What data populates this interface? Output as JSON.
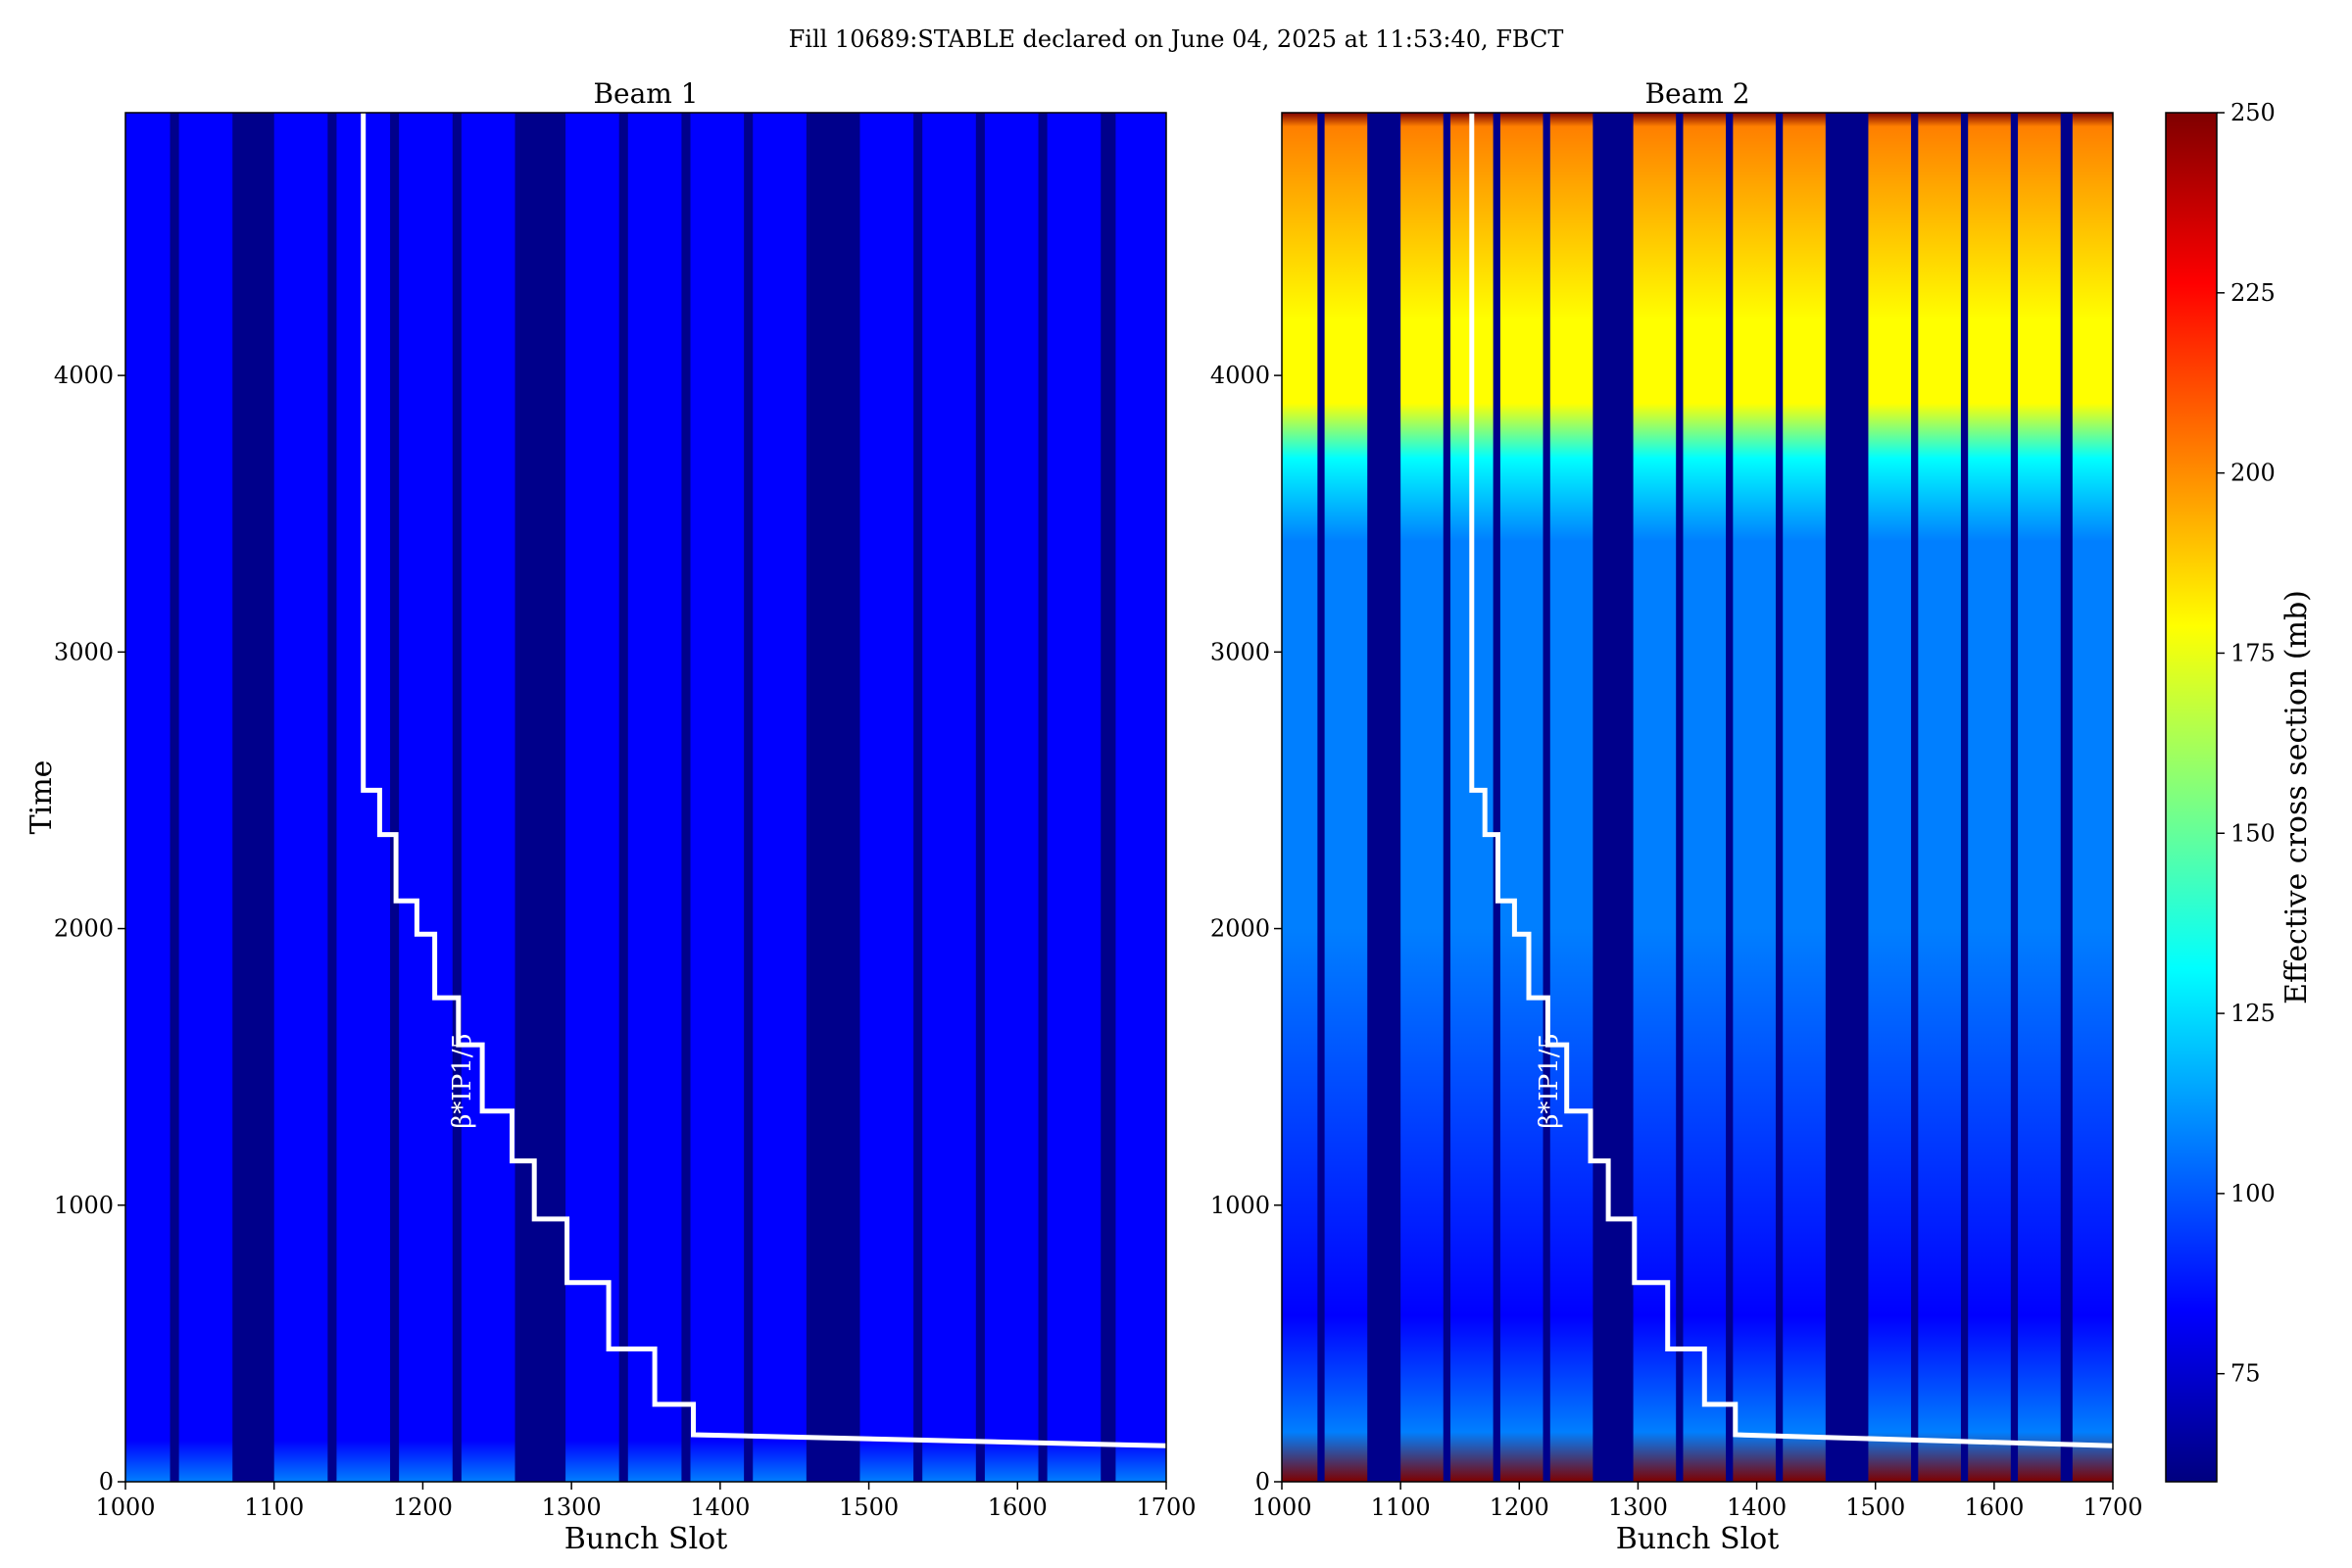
{
  "figure": {
    "title": "Fill 10689:STABLE declared on June 04, 2025 at 11:53:40, FBCT"
  },
  "colors": {
    "background": "#ffffff",
    "empty_slot": "#00008b",
    "overlay_line": "#ffffff",
    "colormap": [
      "#00007f",
      "#0000ff",
      "#007fff",
      "#00ffff",
      "#7fff7f",
      "#ffff00",
      "#ff7f00",
      "#ff0000",
      "#7f0000"
    ]
  },
  "chart_data": [
    {
      "type": "heatmap",
      "title": "Beam 1",
      "xlabel": "Bunch Slot",
      "ylabel": "Time",
      "xlim": [
        1000,
        1700
      ],
      "ylim": [
        0,
        4950
      ],
      "xticks": [
        1000,
        1100,
        1200,
        1300,
        1400,
        1500,
        1600,
        1700
      ],
      "yticks": [
        0,
        1000,
        2000,
        3000,
        4000
      ],
      "filled_slot_bands": [
        [
          1000,
          1030
        ],
        [
          1036,
          1072
        ],
        [
          1100,
          1136
        ],
        [
          1142,
          1178
        ],
        [
          1184,
          1220
        ],
        [
          1226,
          1262
        ],
        [
          1296,
          1332
        ],
        [
          1338,
          1374
        ],
        [
          1380,
          1416
        ],
        [
          1422,
          1458
        ],
        [
          1494,
          1530
        ],
        [
          1536,
          1572
        ],
        [
          1578,
          1614
        ],
        [
          1620,
          1656
        ],
        [
          1666,
          1700
        ]
      ],
      "z_levels": [
        {
          "time": 0,
          "value": 110
        },
        {
          "time": 150,
          "value": 92
        },
        {
          "time": 500,
          "value": 84
        },
        {
          "time": 4850,
          "value": 80
        },
        {
          "time": 4950,
          "value": 90
        }
      ],
      "overlay": {
        "label": "β*IP1/5",
        "steps_x": [
          1160,
          1160,
          1171,
          1171,
          1182,
          1182,
          1196,
          1196,
          1208,
          1208,
          1224,
          1224,
          1240,
          1240,
          1260,
          1260,
          1275,
          1275,
          1297,
          1297,
          1325,
          1325,
          1356,
          1356,
          1382,
          1382,
          1700
        ],
        "steps_y": [
          4950,
          2500,
          2500,
          2340,
          2340,
          2100,
          2100,
          1980,
          1980,
          1750,
          1750,
          1580,
          1580,
          1340,
          1340,
          1160,
          1160,
          950,
          950,
          720,
          720,
          480,
          480,
          280,
          280,
          170,
          130
        ]
      }
    },
    {
      "type": "heatmap",
      "title": "Beam 2",
      "xlabel": "Bunch Slot",
      "ylabel": "",
      "xlim": [
        1000,
        1700
      ],
      "ylim": [
        0,
        4950
      ],
      "xticks": [
        1000,
        1100,
        1200,
        1300,
        1400,
        1500,
        1600,
        1700
      ],
      "yticks": [
        0,
        1000,
        2000,
        3000,
        4000
      ],
      "filled_slot_bands": [
        [
          1000,
          1030
        ],
        [
          1036,
          1072
        ],
        [
          1100,
          1136
        ],
        [
          1142,
          1178
        ],
        [
          1184,
          1220
        ],
        [
          1226,
          1262
        ],
        [
          1296,
          1332
        ],
        [
          1338,
          1374
        ],
        [
          1380,
          1416
        ],
        [
          1422,
          1458
        ],
        [
          1494,
          1530
        ],
        [
          1536,
          1572
        ],
        [
          1578,
          1614
        ],
        [
          1620,
          1656
        ],
        [
          1666,
          1700
        ]
      ],
      "z_levels": [
        {
          "time": 0,
          "value": 240
        },
        {
          "time": 180,
          "value": 110
        },
        {
          "time": 600,
          "value": 95
        },
        {
          "time": 2000,
          "value": 100
        },
        {
          "time": 3400,
          "value": 105
        },
        {
          "time": 3700,
          "value": 140
        },
        {
          "time": 3900,
          "value": 180
        },
        {
          "time": 4200,
          "value": 175
        },
        {
          "time": 4900,
          "value": 210
        },
        {
          "time": 4950,
          "value": 240
        }
      ],
      "overlay": {
        "label": "β*IP1/5",
        "steps_x": [
          1160,
          1160,
          1171,
          1171,
          1182,
          1182,
          1196,
          1196,
          1208,
          1208,
          1224,
          1224,
          1240,
          1240,
          1260,
          1260,
          1275,
          1275,
          1297,
          1297,
          1325,
          1325,
          1356,
          1356,
          1382,
          1382,
          1700
        ],
        "steps_y": [
          4950,
          2500,
          2500,
          2340,
          2340,
          2100,
          2100,
          1980,
          1980,
          1750,
          1750,
          1580,
          1580,
          1340,
          1340,
          1160,
          1160,
          950,
          950,
          720,
          720,
          480,
          480,
          280,
          280,
          170,
          130
        ]
      }
    },
    {
      "type": "colorbar",
      "label": "Effective cross section (mb)",
      "range": [
        60,
        250
      ],
      "ticks": [
        75,
        100,
        125,
        150,
        175,
        200,
        225,
        250
      ]
    }
  ]
}
